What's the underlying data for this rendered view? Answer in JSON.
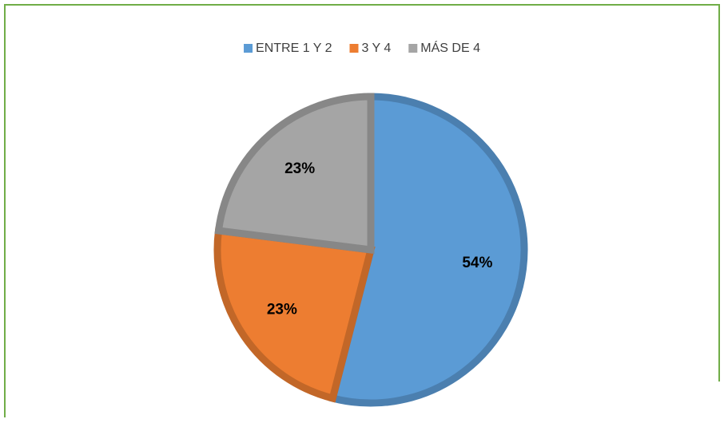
{
  "chart_data": {
    "type": "pie",
    "categories": [
      "ENTRE 1 Y 2",
      "3 Y 4",
      "MÁS DE 4"
    ],
    "values": [
      54,
      23,
      23
    ],
    "value_labels": [
      "54%",
      "23%",
      "23%"
    ],
    "colors": [
      "#5b9bd5",
      "#ed7d31",
      "#a5a5a5"
    ],
    "legend": "top"
  }
}
